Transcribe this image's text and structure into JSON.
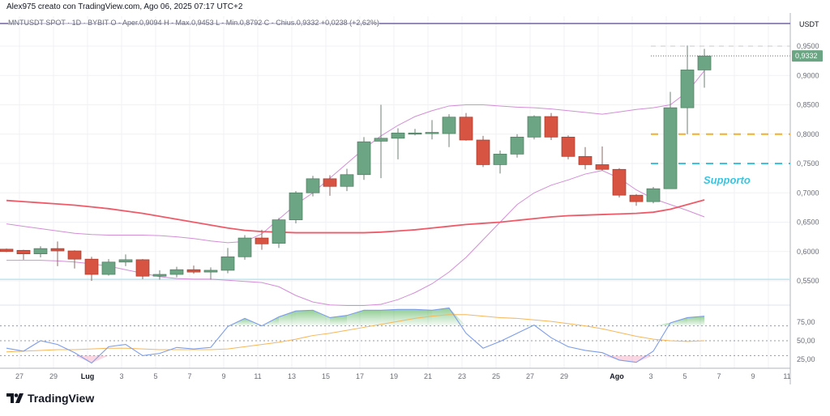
{
  "header": {
    "title": "Alex975 creato con TradingView.com, Ago 06, 2025 07:17 UTC+2",
    "legend": "MNTUSDT SPOT · 1D · BYBIT  O - Aper.0,9094  H - Max.0,9453  L - Min.0,8792  C - Chius.0,9332  +0,0238 (+2,62%)"
  },
  "price_axis": {
    "unit": "USDT",
    "ticks": [
      "0,9500",
      "0,9000",
      "0,8500",
      "0,8000",
      "0,7500",
      "0,7000",
      "0,6500",
      "0,6000",
      "0,5500"
    ],
    "tick_values": [
      0.95,
      0.9,
      0.85,
      0.8,
      0.75,
      0.7,
      0.65,
      0.6,
      0.55
    ],
    "last_price_label": "0,9332",
    "last_price": 0.9332
  },
  "rsi_axis": {
    "ticks": [
      "75,00",
      "50,00",
      "25,00"
    ],
    "tick_values": [
      75,
      50,
      25
    ]
  },
  "time_axis": {
    "labels": [
      "27",
      "29",
      "Lug",
      "3",
      "5",
      "7",
      "9",
      "11",
      "13",
      "15",
      "17",
      "19",
      "21",
      "23",
      "25",
      "27",
      "29",
      "Ago",
      "3",
      "5",
      "7",
      "9",
      "11"
    ]
  },
  "annotation": {
    "text": "Supporto"
  },
  "logo": {
    "text": "TradingView"
  },
  "colors": {
    "up": "#6ba583",
    "down": "#d75442",
    "ma": "#ef5a68",
    "bands": "#d38ed6",
    "rsi": "#7e9de8",
    "rsi_ma": "#f5b759",
    "support_orange": "#f5b022",
    "support_cyan": "#3cc4de",
    "hline_cyan": "#bfe9f1",
    "top_line": "#7d6fb0",
    "label_bg": "#6ba583"
  },
  "chart_data": {
    "type": "candlestick",
    "dates": [
      "06-26",
      "06-27",
      "06-28",
      "06-29",
      "06-30",
      "07-01",
      "07-02",
      "07-03",
      "07-04",
      "07-05",
      "07-06",
      "07-07",
      "07-08",
      "07-09",
      "07-10",
      "07-11",
      "07-12",
      "07-13",
      "07-14",
      "07-15",
      "07-16",
      "07-17",
      "07-18",
      "07-19",
      "07-20",
      "07-21",
      "07-22",
      "07-23",
      "07-24",
      "07-25",
      "07-26",
      "07-27",
      "07-28",
      "07-29",
      "07-30",
      "07-31",
      "08-01",
      "08-02",
      "08-03",
      "08-04",
      "08-05",
      "08-06"
    ],
    "ohlc": [
      [
        0.604,
        0.605,
        0.599,
        0.6
      ],
      [
        0.602,
        0.603,
        0.586,
        0.596
      ],
      [
        0.596,
        0.609,
        0.59,
        0.605
      ],
      [
        0.605,
        0.617,
        0.575,
        0.601
      ],
      [
        0.601,
        0.602,
        0.571,
        0.587
      ],
      [
        0.587,
        0.591,
        0.55,
        0.561
      ],
      [
        0.561,
        0.587,
        0.559,
        0.582
      ],
      [
        0.582,
        0.595,
        0.575,
        0.586
      ],
      [
        0.586,
        0.587,
        0.553,
        0.558
      ],
      [
        0.558,
        0.568,
        0.552,
        0.561
      ],
      [
        0.561,
        0.574,
        0.556,
        0.569
      ],
      [
        0.569,
        0.576,
        0.562,
        0.565
      ],
      [
        0.565,
        0.573,
        0.552,
        0.568
      ],
      [
        0.568,
        0.606,
        0.563,
        0.591
      ],
      [
        0.591,
        0.628,
        0.586,
        0.623
      ],
      [
        0.623,
        0.637,
        0.603,
        0.613
      ],
      [
        0.614,
        0.657,
        0.606,
        0.654
      ],
      [
        0.654,
        0.703,
        0.648,
        0.7
      ],
      [
        0.7,
        0.729,
        0.694,
        0.724
      ],
      [
        0.724,
        0.73,
        0.695,
        0.711
      ],
      [
        0.711,
        0.741,
        0.703,
        0.731
      ],
      [
        0.731,
        0.795,
        0.722,
        0.787
      ],
      [
        0.788,
        0.85,
        0.725,
        0.793
      ],
      [
        0.793,
        0.81,
        0.757,
        0.802
      ],
      [
        0.802,
        0.809,
        0.798,
        0.802
      ],
      [
        0.802,
        0.824,
        0.791,
        0.803
      ],
      [
        0.801,
        0.834,
        0.778,
        0.829
      ],
      [
        0.829,
        0.836,
        0.789,
        0.79
      ],
      [
        0.79,
        0.797,
        0.744,
        0.748
      ],
      [
        0.748,
        0.772,
        0.733,
        0.766
      ],
      [
        0.766,
        0.8,
        0.76,
        0.795
      ],
      [
        0.795,
        0.832,
        0.791,
        0.83
      ],
      [
        0.83,
        0.836,
        0.79,
        0.795
      ],
      [
        0.795,
        0.798,
        0.757,
        0.762
      ],
      [
        0.762,
        0.778,
        0.74,
        0.748
      ],
      [
        0.748,
        0.779,
        0.738,
        0.74
      ],
      [
        0.74,
        0.742,
        0.692,
        0.696
      ],
      [
        0.696,
        0.698,
        0.678,
        0.685
      ],
      [
        0.685,
        0.71,
        0.682,
        0.707
      ],
      [
        0.707,
        0.872,
        0.707,
        0.845
      ],
      [
        0.845,
        0.951,
        0.8,
        0.9094
      ],
      [
        0.9094,
        0.9453,
        0.8792,
        0.9332
      ]
    ],
    "moving_average": [
      0.687,
      0.685,
      0.683,
      0.681,
      0.679,
      0.676,
      0.673,
      0.669,
      0.665,
      0.66,
      0.655,
      0.65,
      0.645,
      0.64,
      0.636,
      0.634,
      0.633,
      0.632,
      0.632,
      0.632,
      0.632,
      0.632,
      0.633,
      0.635,
      0.637,
      0.64,
      0.643,
      0.646,
      0.648,
      0.65,
      0.653,
      0.656,
      0.659,
      0.661,
      0.662,
      0.663,
      0.664,
      0.665,
      0.667,
      0.672,
      0.68,
      0.688
    ],
    "band_upper": [
      0.647,
      0.643,
      0.639,
      0.635,
      0.631,
      0.629,
      0.628,
      0.628,
      0.628,
      0.627,
      0.625,
      0.622,
      0.618,
      0.615,
      0.617,
      0.63,
      0.655,
      0.68,
      0.7,
      0.725,
      0.75,
      0.775,
      0.797,
      0.815,
      0.83,
      0.84,
      0.848,
      0.85,
      0.85,
      0.848,
      0.846,
      0.845,
      0.843,
      0.84,
      0.837,
      0.834,
      0.838,
      0.842,
      0.845,
      0.85,
      0.872,
      0.908
    ],
    "band_lower": [
      0.585,
      0.585,
      0.585,
      0.584,
      0.582,
      0.579,
      0.575,
      0.569,
      0.563,
      0.557,
      0.554,
      0.553,
      0.553,
      0.551,
      0.549,
      0.547,
      0.54,
      0.525,
      0.514,
      0.509,
      0.508,
      0.508,
      0.51,
      0.518,
      0.53,
      0.545,
      0.565,
      0.59,
      0.62,
      0.65,
      0.68,
      0.7,
      0.713,
      0.722,
      0.732,
      0.738,
      0.725,
      0.705,
      0.69,
      0.68,
      0.67,
      0.659
    ],
    "rsi": [
      40,
      36,
      50,
      45,
      34,
      20,
      42,
      45,
      30,
      33,
      41,
      39,
      41,
      69,
      80,
      70,
      82,
      90,
      91,
      81,
      84,
      91,
      91,
      92,
      92,
      91,
      94,
      60,
      40,
      49,
      60,
      71,
      54,
      42,
      37,
      34,
      24,
      21,
      36,
      74,
      81,
      83
    ],
    "rsi_ma": [
      35,
      36,
      37,
      38,
      38,
      39,
      40,
      40,
      39,
      38,
      38,
      38,
      38,
      39,
      42,
      45,
      48,
      52,
      57,
      60,
      64,
      68,
      72,
      76,
      80,
      83,
      85,
      85,
      83,
      81,
      80,
      78,
      76,
      73,
      70,
      66,
      61,
      56,
      52,
      50,
      49,
      50
    ],
    "rsi_levels": [
      70,
      50,
      30
    ],
    "horizontal_lines": [
      {
        "price": 0.9886,
        "style": "solid",
        "color": "#7d6fb0"
      },
      {
        "price": 0.95,
        "style": "dashed",
        "color": "#c8c8c8"
      },
      {
        "price": 0.9332,
        "style": "dotted",
        "color": "#b0b0b0"
      },
      {
        "price": 0.8,
        "style": "dashed",
        "color": "#f5b022"
      },
      {
        "price": 0.75,
        "style": "dashed",
        "color": "#3cc4de"
      },
      {
        "price": 0.5525,
        "style": "solid",
        "color": "#bfe9f1"
      }
    ],
    "price_range": [
      0.499,
      0.999
    ],
    "rsi_range": [
      10,
      100
    ],
    "grid": true
  }
}
